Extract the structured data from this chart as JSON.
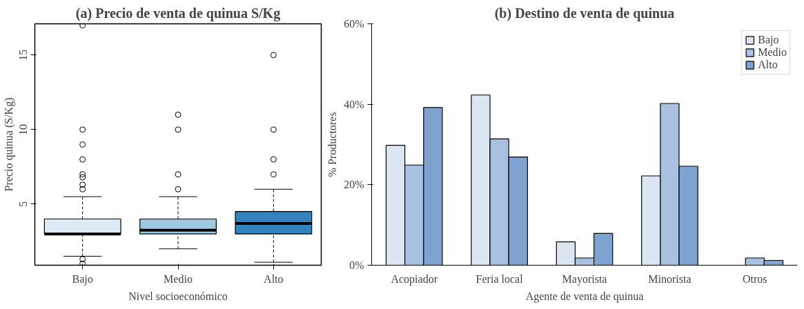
{
  "chart_data": [
    {
      "type": "box",
      "title": "(a) Precio de venta de quinua S/Kg",
      "xlabel": "Nivel socioeconómico",
      "ylabel": "Precio quinua (S/Kg)",
      "categories": [
        "Bajo",
        "Medio",
        "Alto"
      ],
      "colors": [
        "#deebf7",
        "#9ecae1",
        "#3182bd"
      ],
      "boxes": [
        {
          "low": 1.5,
          "q1": 3.0,
          "median": 3.0,
          "q3": 4.0,
          "high": 5.5,
          "outliers": [
            17,
            10,
            9,
            8,
            7,
            6.8,
            6.3,
            6,
            1.3,
            1.0
          ]
        },
        {
          "low": 2.0,
          "q1": 3.0,
          "median": 3.25,
          "q3": 4.0,
          "high": 5.5,
          "outliers": [
            6,
            7,
            10,
            11
          ]
        },
        {
          "low": 1.1,
          "q1": 3.0,
          "median": 3.7,
          "q3": 4.5,
          "high": 6.0,
          "outliers": [
            7,
            8,
            10,
            15
          ]
        }
      ],
      "ylim": [
        0.9,
        17.1
      ],
      "yticks": [
        5,
        10,
        15
      ],
      "grid": false
    },
    {
      "type": "bar",
      "title": "(b) Destino de venta de quinua",
      "xlabel": "Agente de venta de quinua",
      "ylabel": "% Productores",
      "categories": [
        "Acopiador",
        "Feria local",
        "Mayorista",
        "Minorista",
        "Otros"
      ],
      "series": [
        {
          "name": "Bajo",
          "color": "#dce6f2",
          "values": [
            29.8,
            42.3,
            5.8,
            22.2,
            null
          ]
        },
        {
          "name": "Medio",
          "color": "#a9c0e0",
          "values": [
            24.9,
            31.4,
            1.8,
            40.2,
            1.8
          ]
        },
        {
          "name": "Alto",
          "color": "#7ea3d0",
          "values": [
            39.2,
            26.9,
            7.9,
            24.6,
            1.2
          ]
        }
      ],
      "ylim": [
        0,
        60
      ],
      "yticks": [
        {
          "value": 0,
          "label": "0%"
        },
        {
          "value": 20,
          "label": "20%"
        },
        {
          "value": 40,
          "label": "40%"
        },
        {
          "value": 60,
          "label": "60%"
        }
      ],
      "legend": "top right",
      "grid": false
    }
  ]
}
